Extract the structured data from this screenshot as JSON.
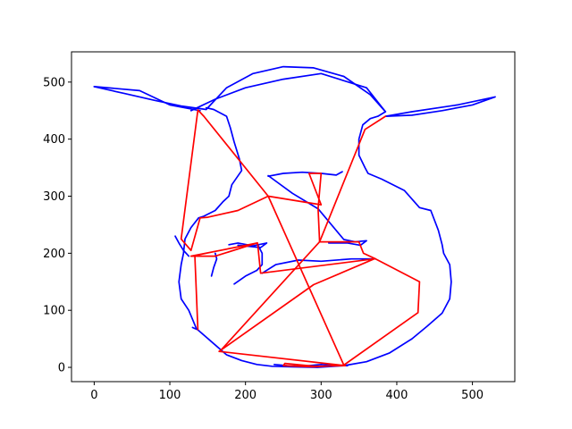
{
  "chart_data": {
    "type": "line",
    "title": "",
    "xlabel": "",
    "ylabel": "",
    "xlim": [
      -30,
      556
    ],
    "ylim": [
      -25,
      553
    ],
    "x_ticks": [
      0,
      100,
      200,
      300,
      400,
      500
    ],
    "y_ticks": [
      0,
      100,
      200,
      300,
      400,
      500
    ],
    "x_tick_labels": [
      "0",
      "100",
      "200",
      "300",
      "400",
      "500"
    ],
    "y_tick_labels": [
      "0",
      "100",
      "200",
      "300",
      "400",
      "500"
    ],
    "grid": false,
    "legend": "none",
    "series": [
      {
        "color": "#0000ff",
        "segments": [
          [
            [
              0,
              492
            ],
            [
              40,
              480
            ],
            [
              80,
              468
            ],
            [
              115,
              458
            ],
            [
              148,
              452
            ],
            [
              175,
              490
            ],
            [
              210,
              515
            ],
            [
              250,
              527
            ],
            [
              290,
              525
            ],
            [
              330,
              510
            ],
            [
              365,
              478
            ],
            [
              385,
              448
            ],
            [
              375,
              440
            ],
            [
              365,
              436
            ],
            [
              355,
              425
            ],
            [
              350,
              400
            ],
            [
              350,
              372
            ],
            [
              358,
              350
            ],
            [
              362,
              340
            ],
            [
              380,
              330
            ],
            [
              410,
              310
            ],
            [
              430,
              280
            ],
            [
              445,
              275
            ],
            [
              455,
              240
            ],
            [
              460,
              215
            ],
            [
              462,
              200
            ],
            [
              470,
              180
            ],
            [
              472,
              150
            ],
            [
              470,
              120
            ],
            [
              460,
              95
            ],
            [
              440,
              72
            ],
            [
              420,
              50
            ],
            [
              390,
              25
            ],
            [
              360,
              10
            ],
            [
              330,
              3
            ],
            [
              295,
              0
            ],
            [
              260,
              1
            ],
            [
              235,
              2
            ],
            [
              215,
              5
            ],
            [
              195,
              12
            ],
            [
              175,
              22
            ],
            [
              155,
              45
            ],
            [
              135,
              68
            ],
            [
              125,
              100
            ],
            [
              115,
              120
            ],
            [
              112,
              150
            ],
            [
              115,
              180
            ],
            [
              118,
              200
            ],
            [
              120,
              225
            ],
            [
              128,
              245
            ],
            [
              138,
              262
            ],
            [
              145,
              265
            ],
            [
              160,
              275
            ],
            [
              170,
              290
            ],
            [
              178,
              300
            ],
            [
              182,
              320
            ],
            [
              195,
              345
            ],
            [
              192,
              365
            ],
            [
              185,
              395
            ],
            [
              180,
              420
            ],
            [
              175,
              440
            ],
            [
              158,
              452
            ],
            [
              148,
              455
            ]
          ],
          [
            [
              128,
              450
            ],
            [
              160,
              470
            ],
            [
              200,
              490
            ],
            [
              250,
              505
            ],
            [
              300,
              515
            ],
            [
              360,
              490
            ],
            [
              385,
              448
            ]
          ],
          [
            [
              0,
              492
            ],
            [
              60,
              485
            ],
            [
              100,
              460
            ],
            [
              140,
              450
            ]
          ],
          [
            [
              385,
              440
            ],
            [
              420,
              448
            ],
            [
              480,
              460
            ],
            [
              530,
              474
            ],
            [
              500,
              460
            ],
            [
              460,
              450
            ],
            [
              420,
              442
            ],
            [
              385,
              440
            ]
          ],
          [
            [
              107,
              230
            ],
            [
              112,
              218
            ],
            [
              118,
              205
            ],
            [
              125,
              195
            ]
          ],
          [
            [
              155,
              160
            ],
            [
              158,
              175
            ],
            [
              162,
              190
            ],
            [
              160,
              200
            ]
          ],
          [
            [
              178,
              215
            ],
            [
              190,
              218
            ],
            [
              210,
              213
            ],
            [
              228,
              218
            ],
            [
              220,
              210
            ],
            [
              205,
              212
            ],
            [
              190,
              214
            ]
          ],
          [
            [
              230,
              335
            ],
            [
              250,
              340
            ],
            [
              275,
              342
            ],
            [
              300,
              340
            ],
            [
              320,
              337
            ],
            [
              328,
              343
            ]
          ],
          [
            [
              230,
              336
            ],
            [
              262,
              305
            ],
            [
              296,
              278
            ],
            [
              330,
              224
            ],
            [
              345,
              220
            ],
            [
              360,
              222
            ],
            [
              352,
              214
            ],
            [
              335,
              218
            ],
            [
              310,
              218
            ]
          ],
          [
            [
              215,
              218
            ],
            [
              222,
              200
            ],
            [
              222,
              180
            ],
            [
              215,
              170
            ],
            [
              200,
              160
            ],
            [
              185,
              146
            ]
          ],
          [
            [
              222,
              165
            ],
            [
              240,
              180
            ],
            [
              270,
              188
            ],
            [
              300,
              186
            ],
            [
              340,
              190
            ],
            [
              372,
              190
            ]
          ],
          [
            [
              130,
              70
            ],
            [
              133,
              68
            ],
            [
              137,
              66
            ]
          ],
          [
            [
              238,
              5
            ],
            [
              255,
              3
            ],
            [
              275,
              2
            ],
            [
              300,
              5
            ],
            [
              320,
              3
            ],
            [
              335,
              3
            ]
          ]
        ]
      },
      {
        "color": "#ff0000",
        "segments": [
          [
            [
              137,
              451
            ],
            [
              115,
              225
            ],
            [
              128,
              205
            ],
            [
              140,
              262
            ],
            [
              150,
              263
            ],
            [
              190,
              275
            ],
            [
              230,
              300
            ],
            [
              300,
              285
            ],
            [
              284,
              340
            ],
            [
              300,
              340
            ],
            [
              296,
              278
            ],
            [
              298,
              220
            ],
            [
              350,
              220
            ],
            [
              356,
              200
            ],
            [
              372,
              190
            ],
            [
              430,
              150
            ],
            [
              428,
              96
            ],
            [
              330,
              4
            ],
            [
              290,
              1
            ],
            [
              250,
              3
            ],
            [
              252,
              7
            ],
            [
              292,
              2
            ],
            [
              332,
              3
            ],
            [
              165,
              28
            ],
            [
              290,
              145
            ],
            [
              370,
              190
            ],
            [
              220,
              165
            ],
            [
              216,
              218
            ],
            [
              128,
              195
            ],
            [
              160,
              195
            ],
            [
              215,
              218
            ],
            [
              133,
              196
            ],
            [
              137,
              66
            ]
          ],
          [
            [
              137,
              451
            ],
            [
              145,
              440
            ],
            [
              230,
              300
            ],
            [
              330,
              4
            ]
          ],
          [
            [
              358,
              417
            ],
            [
              385,
              440
            ],
            [
              358,
              417
            ],
            [
              298,
              220
            ],
            [
              166,
              28
            ]
          ]
        ]
      }
    ]
  }
}
